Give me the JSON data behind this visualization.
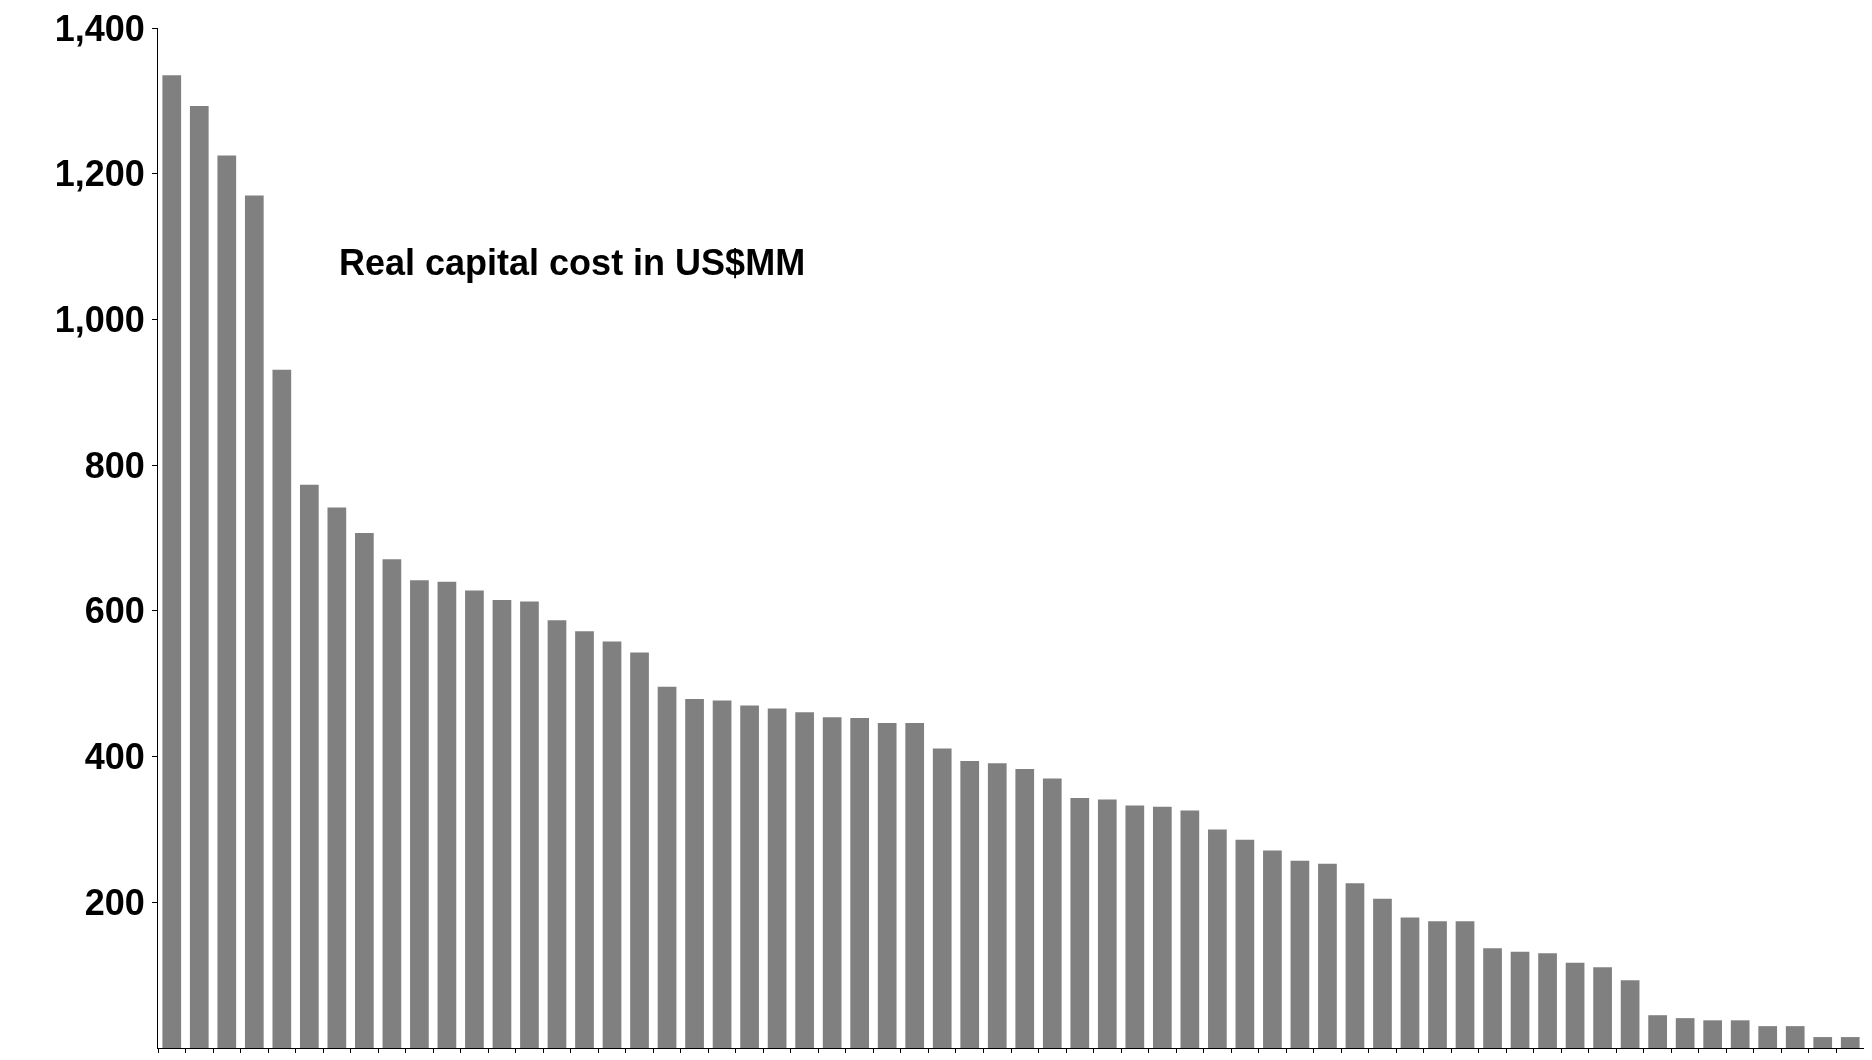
{
  "chart_data": {
    "type": "bar",
    "annotations": [
      "Real capital cost in US$MM"
    ],
    "categories": [
      null,
      null,
      null,
      null,
      null,
      null,
      null,
      null,
      null,
      null,
      null,
      null,
      null,
      null,
      null,
      null,
      null,
      null,
      null,
      null,
      null,
      null,
      null,
      null,
      null,
      null,
      null,
      null,
      null,
      null,
      null,
      null,
      null,
      null,
      null,
      null,
      null,
      null,
      null,
      null,
      null,
      null,
      null,
      null,
      null,
      null,
      null,
      null,
      null,
      null,
      null,
      null,
      null,
      null,
      null,
      null,
      null,
      null,
      null,
      null,
      null,
      null
    ],
    "values": [
      1335,
      1293,
      1225,
      1170,
      931,
      773,
      742,
      707,
      671,
      642,
      640,
      628,
      615,
      613,
      587,
      572,
      558,
      543,
      496,
      479,
      477,
      470,
      466,
      461,
      454,
      453,
      446,
      446,
      411,
      394,
      391,
      383,
      370,
      343,
      341,
      333,
      331,
      326,
      300,
      286,
      271,
      257,
      253,
      226,
      205,
      179,
      174,
      174,
      137,
      132,
      130,
      117,
      111,
      93,
      45,
      41,
      38,
      38,
      30,
      30,
      15,
      15
    ],
    "color": "#808080",
    "ylim": [
      0,
      1400
    ],
    "yticks": [
      200,
      400,
      600,
      800,
      {
        "value": 1000,
        "label": "1,000"
      },
      {
        "value": 1200,
        "label": "1,200"
      },
      {
        "value": 1400,
        "label": "1,400"
      }
    ],
    "tick_labels": "y"
  }
}
